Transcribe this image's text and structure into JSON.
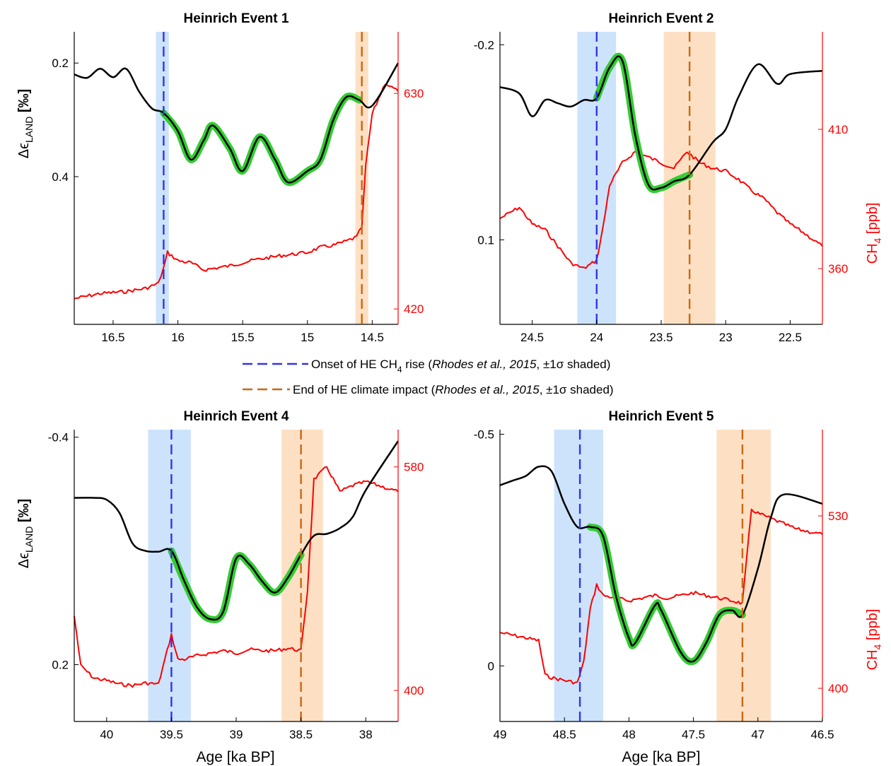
{
  "figure": {
    "legend": {
      "onset": {
        "label_pre": "Onset of HE CH",
        "label_sub": "4",
        "label_post": " rise (",
        "citation": "Rhodes et al., 2015",
        "sigma": ", ±1σ shaded)"
      },
      "end": {
        "label_pre": "End of HE climate impact (",
        "citation": "Rhodes et al., 2015",
        "sigma": ", ±1σ shaded)"
      }
    },
    "left_ylabel": {
      "main": "Δϵ",
      "sub": "LAND",
      "unit": " [‰]"
    },
    "right_ylabel": {
      "main": "CH",
      "sub": "4",
      "unit": " [ppb]"
    },
    "xlabel": "Age [ka BP]",
    "colors": {
      "axis": "#000000",
      "ch4": "#ff0000",
      "eps_line": "#000000",
      "highlight": "#33cc33",
      "onset_line": "#3333ee",
      "onset_band": "#cce3fb",
      "end_line": "#cc6611",
      "end_band": "#fde0c4"
    }
  },
  "chart_data": [
    {
      "type": "line",
      "title": "Heinrich Event 1",
      "xlim": [
        16.8,
        14.3
      ],
      "xticks": [
        16.5,
        16,
        15.5,
        15,
        14.5
      ],
      "left_ylim": [
        0.2,
        0.2
      ],
      "eps_ylim": [
        0.145,
        0.66
      ],
      "eps_ticks": [
        0.2,
        0.4
      ],
      "ch4_ylim": [
        405,
        690
      ],
      "ch4_ticks": [
        420,
        630
      ],
      "onset": {
        "center": 16.11,
        "band": [
          16.17,
          16.07
        ]
      },
      "end": {
        "center": 14.58,
        "band": [
          14.63,
          14.53
        ]
      },
      "highlight_range": [
        16.11,
        14.58
      ],
      "eps_series": {
        "x": [
          16.8,
          16.7,
          16.6,
          16.5,
          16.4,
          16.3,
          16.2,
          16.11,
          16.0,
          15.9,
          15.8,
          15.73,
          15.6,
          15.5,
          15.37,
          15.25,
          15.15,
          15.0,
          14.9,
          14.8,
          14.7,
          14.6,
          14.5,
          14.3
        ],
        "y": [
          0.22,
          0.226,
          0.21,
          0.225,
          0.21,
          0.25,
          0.28,
          0.288,
          0.32,
          0.37,
          0.336,
          0.31,
          0.35,
          0.39,
          0.33,
          0.37,
          0.41,
          0.39,
          0.37,
          0.3,
          0.26,
          0.265,
          0.275,
          0.2
        ]
      },
      "ch4_series": {
        "x": [
          16.8,
          16.6,
          16.4,
          16.25,
          16.15,
          16.11,
          16.08,
          16.0,
          15.9,
          15.8,
          15.6,
          15.4,
          15.2,
          15.0,
          14.9,
          14.8,
          14.7,
          14.62,
          14.58,
          14.55,
          14.5,
          14.45,
          14.4,
          14.3
        ],
        "y": [
          430,
          435,
          437,
          440,
          445,
          460,
          475,
          467,
          465,
          458,
          462,
          468,
          472,
          475,
          480,
          482,
          486,
          490,
          500,
          560,
          610,
          625,
          640,
          632
        ]
      }
    },
    {
      "type": "line",
      "title": "Heinrich Event 2",
      "xlim": [
        24.75,
        22.25
      ],
      "xticks": [
        24.5,
        24,
        23.5,
        23,
        22.5
      ],
      "eps_ylim": [
        -0.22,
        0.23
      ],
      "eps_ticks": [
        -0.2,
        0.1
      ],
      "ch4_ylim": [
        340,
        445
      ],
      "ch4_ticks": [
        360,
        410
      ],
      "onset": {
        "center": 24.0,
        "band": [
          24.15,
          23.85
        ]
      },
      "end": {
        "center": 23.28,
        "band": [
          23.48,
          23.08
        ]
      },
      "highlight_range": [
        24.0,
        23.28
      ],
      "eps_series": {
        "x": [
          24.75,
          24.6,
          24.5,
          24.4,
          24.3,
          24.2,
          24.1,
          24.0,
          23.9,
          23.8,
          23.7,
          23.6,
          23.5,
          23.4,
          23.28,
          23.1,
          23.0,
          22.9,
          22.75,
          22.6,
          22.5,
          22.25
        ],
        "y": [
          -0.135,
          -0.125,
          -0.09,
          -0.115,
          -0.11,
          -0.105,
          -0.115,
          -0.118,
          -0.165,
          -0.175,
          -0.06,
          0.015,
          0.02,
          0.01,
          0.0,
          -0.05,
          -0.07,
          -0.12,
          -0.17,
          -0.14,
          -0.155,
          -0.16
        ]
      },
      "ch4_series": {
        "x": [
          24.75,
          24.6,
          24.5,
          24.4,
          24.3,
          24.2,
          24.1,
          24.0,
          23.95,
          23.9,
          23.8,
          23.7,
          23.6,
          23.5,
          23.4,
          23.3,
          23.2,
          23.1,
          23.0,
          22.9,
          22.8,
          22.7,
          22.6,
          22.5,
          22.4,
          22.25
        ],
        "y": [
          378,
          382,
          376,
          374,
          368,
          362,
          360,
          363,
          375,
          390,
          398,
          402,
          400,
          398,
          396,
          402,
          398,
          396,
          395,
          392,
          388,
          385,
          380,
          376,
          373,
          368
        ]
      }
    },
    {
      "type": "line",
      "title": "Heinrich Event 4",
      "xlim": [
        40.25,
        37.75
      ],
      "xticks": [
        40,
        39.5,
        39,
        38.5,
        38
      ],
      "eps_ylim": [
        -0.42,
        0.35
      ],
      "eps_ticks": [
        -0.4,
        0.2
      ],
      "ch4_ylim": [
        375,
        610
      ],
      "ch4_ticks": [
        400,
        580
      ],
      "onset": {
        "center": 39.5,
        "band": [
          39.68,
          39.35
        ]
      },
      "end": {
        "center": 38.5,
        "band": [
          38.65,
          38.33
        ]
      },
      "highlight_range": [
        39.5,
        38.5
      ],
      "eps_series": {
        "x": [
          40.25,
          40.1,
          40.0,
          39.9,
          39.8,
          39.7,
          39.6,
          39.5,
          39.4,
          39.3,
          39.2,
          39.1,
          39.0,
          38.9,
          38.8,
          38.7,
          38.6,
          38.5,
          38.4,
          38.3,
          38.2,
          38.1,
          38.0,
          37.75
        ],
        "y": [
          -0.24,
          -0.24,
          -0.235,
          -0.2,
          -0.12,
          -0.1,
          -0.098,
          -0.1,
          -0.02,
          0.05,
          0.08,
          0.06,
          -0.08,
          -0.065,
          -0.02,
          0.01,
          -0.03,
          -0.09,
          -0.14,
          -0.145,
          -0.16,
          -0.19,
          -0.26,
          -0.39
        ]
      },
      "ch4_series": {
        "x": [
          40.25,
          40.2,
          40.1,
          40.0,
          39.9,
          39.8,
          39.7,
          39.6,
          39.5,
          39.45,
          39.4,
          39.3,
          39.2,
          39.1,
          39.0,
          38.9,
          38.8,
          38.7,
          38.6,
          38.5,
          38.45,
          38.4,
          38.3,
          38.2,
          38.1,
          38.0,
          37.9,
          37.75
        ],
        "y": [
          460,
          420,
          410,
          408,
          405,
          404,
          406,
          405,
          445,
          425,
          425,
          428,
          430,
          432,
          430,
          433,
          432,
          432,
          434,
          432,
          480,
          570,
          580,
          560,
          565,
          568,
          565,
          560
        ]
      }
    },
    {
      "type": "line",
      "title": "Heinrich Event 5",
      "xlim": [
        49.0,
        46.5
      ],
      "xticks": [
        49,
        48.5,
        48,
        47.5,
        47,
        46.5
      ],
      "eps_ylim": [
        -0.51,
        0.12
      ],
      "eps_ticks": [
        -0.5,
        0
      ],
      "ch4_ylim": [
        375,
        595
      ],
      "ch4_ticks": [
        400,
        530
      ],
      "onset": {
        "center": 48.38,
        "band": [
          48.58,
          48.2
        ]
      },
      "end": {
        "center": 47.12,
        "band": [
          47.32,
          46.9
        ]
      },
      "highlight_range": [
        48.38,
        47.12
      ],
      "eps_series": {
        "x": [
          49.0,
          48.9,
          48.8,
          48.7,
          48.6,
          48.5,
          48.4,
          48.3,
          48.2,
          48.1,
          48.0,
          47.95,
          47.8,
          47.75,
          47.6,
          47.5,
          47.4,
          47.3,
          47.2,
          47.12,
          47.0,
          46.9,
          46.8,
          46.5
        ],
        "y": [
          -0.39,
          -0.4,
          -0.41,
          -0.43,
          -0.42,
          -0.35,
          -0.3,
          -0.3,
          -0.28,
          -0.15,
          -0.06,
          -0.05,
          -0.13,
          -0.12,
          -0.03,
          -0.01,
          -0.05,
          -0.11,
          -0.12,
          -0.11,
          -0.21,
          -0.32,
          -0.37,
          -0.35
        ]
      },
      "ch4_series": {
        "x": [
          49.0,
          48.9,
          48.8,
          48.7,
          48.65,
          48.6,
          48.5,
          48.4,
          48.35,
          48.3,
          48.25,
          48.2,
          48.1,
          48.0,
          47.9,
          47.8,
          47.7,
          47.6,
          47.5,
          47.4,
          47.3,
          47.2,
          47.12,
          47.05,
          47.0,
          46.9,
          46.8,
          46.7,
          46.6,
          46.5
        ],
        "y": [
          442,
          440,
          438,
          436,
          410,
          408,
          406,
          404,
          420,
          460,
          478,
          470,
          468,
          466,
          468,
          470,
          468,
          470,
          472,
          470,
          468,
          466,
          464,
          535,
          532,
          528,
          524,
          520,
          518,
          516
        ]
      }
    }
  ]
}
